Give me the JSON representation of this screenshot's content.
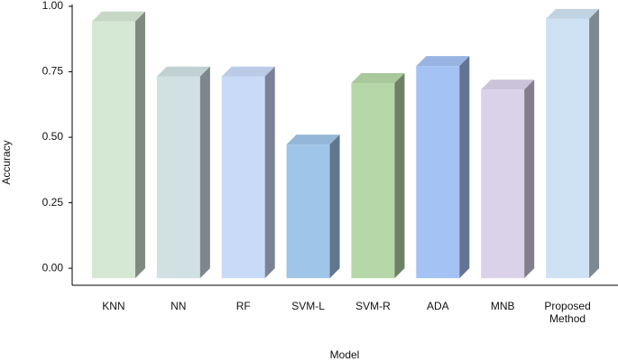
{
  "chart_data": {
    "type": "bar3d",
    "x_label": "Model",
    "y_label": "Accuracy",
    "categories": [
      "KNN",
      "NN",
      "RF",
      "SVM-L",
      "SVM-R",
      "ADA",
      "MNB",
      "Proposed Method"
    ],
    "values": [
      0.98,
      0.77,
      0.77,
      0.51,
      0.745,
      0.81,
      0.72,
      0.99
    ],
    "colors": [
      "#d5e8d4",
      "#d0e0e3",
      "#c9daf8",
      "#9fc5e8",
      "#b6d7a8",
      "#a4c2f4",
      "#d9d2e9",
      "#cfe2f3"
    ],
    "ylim": [
      -0.065,
      1.0
    ],
    "yticks": [
      {
        "value": 0,
        "label": "0.00"
      },
      {
        "value": 0.25,
        "label": "0.25"
      },
      {
        "value": 0.5,
        "label": "0.50"
      },
      {
        "value": 0.75,
        "label": "0.75"
      },
      {
        "value": 1,
        "label": "1.00"
      }
    ]
  }
}
